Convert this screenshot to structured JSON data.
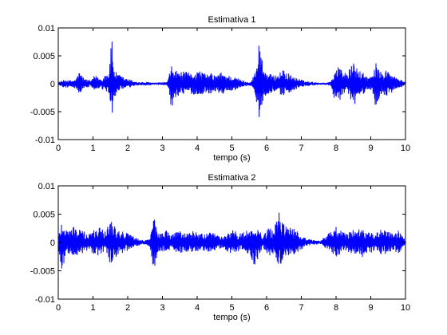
{
  "chart_data": [
    {
      "type": "line",
      "title": "Estimativa 1",
      "xlabel": "tempo (s)",
      "ylabel": "",
      "xlim": [
        0,
        10
      ],
      "ylim": [
        -0.01,
        0.01
      ],
      "xticks": [
        "0",
        "1",
        "2",
        "3",
        "4",
        "5",
        "6",
        "7",
        "8",
        "9",
        "10"
      ],
      "yticks": [
        "0.01",
        "0.005",
        "0",
        "-0.005",
        "-0.01"
      ],
      "grid": false,
      "color": "#0000ff",
      "series": [
        {
          "envelope": {
            "t": [
              0.0,
              0.1,
              0.2,
              0.35,
              0.5,
              0.6,
              0.65,
              0.75,
              0.85,
              0.95,
              1.05,
              1.15,
              1.25,
              1.35,
              1.45,
              1.55,
              1.6,
              1.7,
              1.8,
              1.9,
              2.0,
              2.1,
              2.2,
              2.3,
              2.45,
              2.6,
              2.75,
              2.9,
              3.05,
              3.15,
              3.25,
              3.35,
              3.5,
              3.65,
              3.8,
              3.95,
              4.1,
              4.25,
              4.4,
              4.55,
              4.7,
              4.85,
              5.0,
              5.1,
              5.25,
              5.4,
              5.55,
              5.7,
              5.8,
              5.9,
              6.05,
              6.2,
              6.35,
              6.5,
              6.65,
              6.8,
              6.95,
              7.1,
              7.25,
              7.4,
              7.55,
              7.7,
              7.85,
              8.0,
              8.15,
              8.25,
              8.35,
              8.5,
              8.65,
              8.8,
              8.95,
              9.05,
              9.15,
              9.3,
              9.45,
              9.6,
              9.75,
              9.9,
              10.0
            ],
            "upper": [
              0.0003,
              0.0005,
              0.0008,
              0.0006,
              0.0008,
              0.0022,
              0.0019,
              0.0009,
              0.0008,
              0.0006,
              0.0016,
              0.0012,
              0.0009,
              0.0018,
              0.0021,
              0.0085,
              0.0028,
              0.0018,
              0.0015,
              0.0011,
              0.0009,
              0.0007,
              0.0005,
              0.0003,
              0.0003,
              0.0003,
              0.0002,
              0.0002,
              0.0003,
              0.0004,
              0.0032,
              0.0026,
              0.0021,
              0.0022,
              0.0019,
              0.0022,
              0.0024,
              0.0017,
              0.0019,
              0.0015,
              0.0021,
              0.0016,
              0.0014,
              0.0012,
              0.0008,
              0.0004,
              0.0004,
              0.0026,
              0.0088,
              0.0031,
              0.0019,
              0.0015,
              0.0021,
              0.0025,
              0.0018,
              0.0012,
              0.0009,
              0.0005,
              0.0004,
              0.0003,
              0.0002,
              0.0002,
              0.0004,
              0.0032,
              0.0029,
              0.0021,
              0.0022,
              0.0038,
              0.0024,
              0.0019,
              0.0012,
              0.0015,
              0.0037,
              0.0021,
              0.0026,
              0.0018,
              0.0011,
              0.0006,
              0.0003
            ],
            "lower": [
              -0.0003,
              -0.0005,
              -0.0008,
              -0.0005,
              -0.0009,
              -0.0018,
              -0.0015,
              -0.0008,
              -0.0007,
              -0.0005,
              -0.0014,
              -0.0011,
              -0.0009,
              -0.0016,
              -0.0019,
              -0.0058,
              -0.0026,
              -0.0017,
              -0.0013,
              -0.001,
              -0.0008,
              -0.0006,
              -0.0004,
              -0.0003,
              -0.0003,
              -0.0003,
              -0.0002,
              -0.0002,
              -0.0003,
              -0.0004,
              -0.0052,
              -0.0026,
              -0.002,
              -0.0021,
              -0.0018,
              -0.0021,
              -0.0022,
              -0.0016,
              -0.0018,
              -0.0014,
              -0.002,
              -0.0015,
              -0.0013,
              -0.0011,
              -0.0007,
              -0.0004,
              -0.0004,
              -0.003,
              -0.0068,
              -0.0028,
              -0.0018,
              -0.0014,
              -0.002,
              -0.0022,
              -0.0016,
              -0.0011,
              -0.0008,
              -0.0005,
              -0.0004,
              -0.0003,
              -0.0002,
              -0.0002,
              -0.0004,
              -0.0038,
              -0.0026,
              -0.002,
              -0.0021,
              -0.0045,
              -0.0023,
              -0.0018,
              -0.0011,
              -0.0014,
              -0.0045,
              -0.0019,
              -0.0024,
              -0.0017,
              -0.001,
              -0.0006,
              -0.0003
            ]
          }
        }
      ]
    },
    {
      "type": "line",
      "title": "Estimativa 2",
      "xlabel": "tempo (s)",
      "ylabel": "",
      "xlim": [
        0,
        10
      ],
      "ylim": [
        -0.01,
        0.01
      ],
      "xticks": [
        "0",
        "1",
        "2",
        "3",
        "4",
        "5",
        "6",
        "7",
        "8",
        "9",
        "10"
      ],
      "yticks": [
        "0.01",
        "0.005",
        "0",
        "-0.005",
        "-0.01"
      ],
      "grid": false,
      "color": "#0000ff",
      "series": [
        {
          "envelope": {
            "t": [
              0.0,
              0.1,
              0.2,
              0.3,
              0.45,
              0.6,
              0.75,
              0.9,
              1.05,
              1.2,
              1.35,
              1.5,
              1.65,
              1.8,
              1.95,
              2.1,
              2.2,
              2.35,
              2.5,
              2.65,
              2.75,
              2.85,
              2.95,
              3.1,
              3.25,
              3.4,
              3.55,
              3.7,
              3.85,
              4.0,
              4.15,
              4.3,
              4.45,
              4.6,
              4.75,
              4.9,
              5.05,
              5.2,
              5.35,
              5.5,
              5.65,
              5.8,
              5.9,
              6.05,
              6.2,
              6.35,
              6.5,
              6.65,
              6.8,
              6.95,
              7.1,
              7.25,
              7.4,
              7.55,
              7.7,
              7.85,
              8.0,
              8.15,
              8.3,
              8.45,
              8.6,
              8.75,
              8.9,
              9.05,
              9.2,
              9.35,
              9.5,
              9.65,
              9.8,
              9.9,
              10.0
            ],
            "upper": [
              0.001,
              0.0042,
              0.0028,
              0.0022,
              0.003,
              0.0024,
              0.0019,
              0.0016,
              0.0025,
              0.0027,
              0.0021,
              0.0045,
              0.003,
              0.0022,
              0.0018,
              0.0014,
              0.0009,
              0.0005,
              0.0004,
              0.0008,
              0.0062,
              0.0021,
              0.0016,
              0.0024,
              0.0012,
              0.0019,
              0.0022,
              0.0017,
              0.0021,
              0.0019,
              0.0015,
              0.002,
              0.0017,
              0.0013,
              0.001,
              0.002,
              0.0022,
              0.0016,
              0.0018,
              0.0023,
              0.0025,
              0.0021,
              0.001,
              0.0028,
              0.0022,
              0.0055,
              0.0035,
              0.0028,
              0.0024,
              0.0016,
              0.0009,
              0.0005,
              0.0004,
              0.0003,
              0.0012,
              0.002,
              0.0028,
              0.0022,
              0.0015,
              0.0025,
              0.0021,
              0.0031,
              0.0018,
              0.0022,
              0.0018,
              0.0026,
              0.002,
              0.0015,
              0.0022,
              0.0012,
              0.0004
            ],
            "upper_note": "",
            "lower": [
              -0.001,
              -0.0055,
              -0.0025,
              -0.002,
              -0.0026,
              -0.0022,
              -0.0017,
              -0.0015,
              -0.0023,
              -0.0025,
              -0.0019,
              -0.0038,
              -0.0027,
              -0.002,
              -0.0016,
              -0.0012,
              -0.0008,
              -0.0005,
              -0.0004,
              -0.0008,
              -0.0062,
              -0.0018,
              -0.0015,
              -0.0022,
              -0.0011,
              -0.0017,
              -0.002,
              -0.0016,
              -0.0019,
              -0.0017,
              -0.0014,
              -0.0018,
              -0.0016,
              -0.0012,
              -0.0009,
              -0.0018,
              -0.002,
              -0.0015,
              -0.0017,
              -0.0021,
              -0.0045,
              -0.0019,
              -0.0009,
              -0.0025,
              -0.002,
              -0.0042,
              -0.0032,
              -0.0026,
              -0.0022,
              -0.0015,
              -0.0008,
              -0.0005,
              -0.0004,
              -0.0003,
              -0.0011,
              -0.0018,
              -0.0025,
              -0.002,
              -0.0014,
              -0.0023,
              -0.0019,
              -0.0028,
              -0.0017,
              -0.002,
              -0.0016,
              -0.0024,
              -0.0018,
              -0.0014,
              -0.002,
              -0.0011,
              -0.0004
            ]
          }
        }
      ]
    }
  ]
}
